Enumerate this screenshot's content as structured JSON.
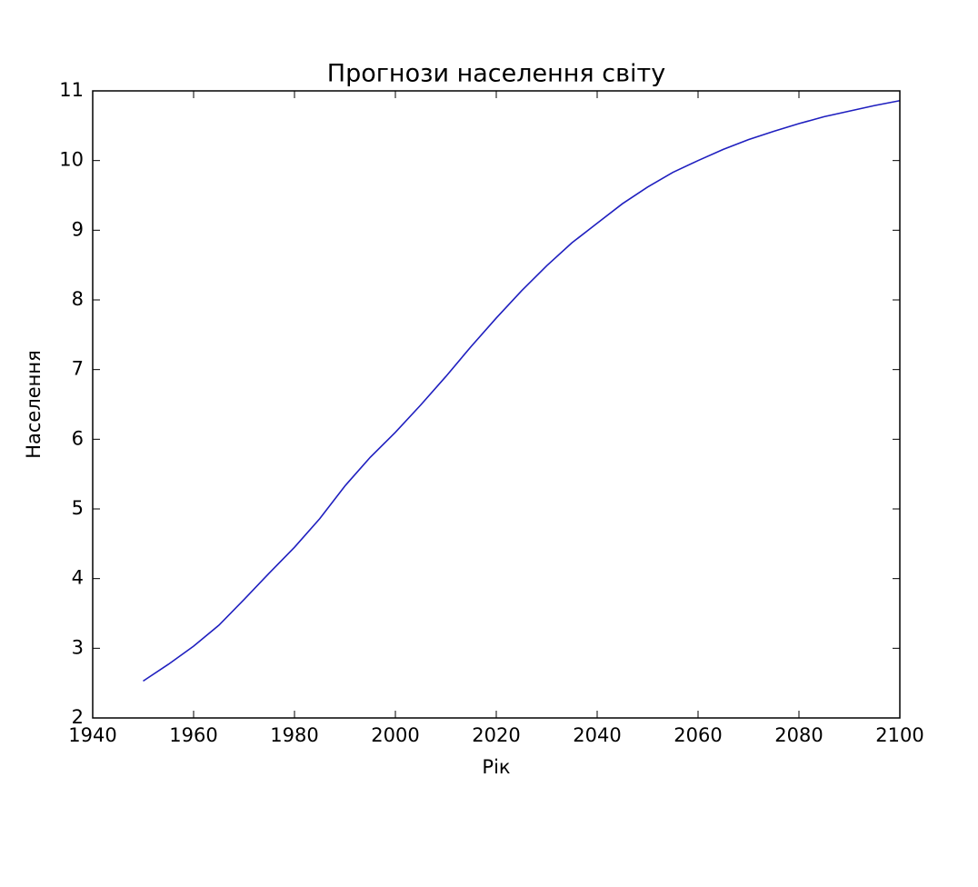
{
  "chart_data": {
    "type": "line",
    "title": "Прогнози населення світу",
    "xlabel": "Рік",
    "ylabel": "Населення",
    "x": [
      1950,
      1955,
      1960,
      1965,
      1970,
      1975,
      1980,
      1985,
      1990,
      1995,
      2000,
      2005,
      2010,
      2015,
      2020,
      2025,
      2030,
      2035,
      2040,
      2045,
      2050,
      2055,
      2060,
      2065,
      2070,
      2075,
      2080,
      2085,
      2090,
      2095,
      2100
    ],
    "series": [
      {
        "color": "#1f1fbf",
        "values": [
          2.53,
          2.77,
          3.03,
          3.33,
          3.7,
          4.08,
          4.45,
          4.86,
          5.33,
          5.74,
          6.1,
          6.49,
          6.9,
          7.33,
          7.74,
          8.13,
          8.49,
          8.82,
          9.1,
          9.38,
          9.62,
          9.83,
          10.0,
          10.16,
          10.3,
          10.42,
          10.53,
          10.63,
          10.71,
          10.79,
          10.86
        ]
      }
    ],
    "xlim": [
      1940,
      2100
    ],
    "xticks": [
      1940,
      1960,
      1980,
      2000,
      2020,
      2040,
      2060,
      2080,
      2100
    ],
    "ylim": [
      2,
      11
    ],
    "yticks": [
      2,
      3,
      4,
      5,
      6,
      7,
      8,
      9,
      10,
      11
    ],
    "grid": false
  }
}
